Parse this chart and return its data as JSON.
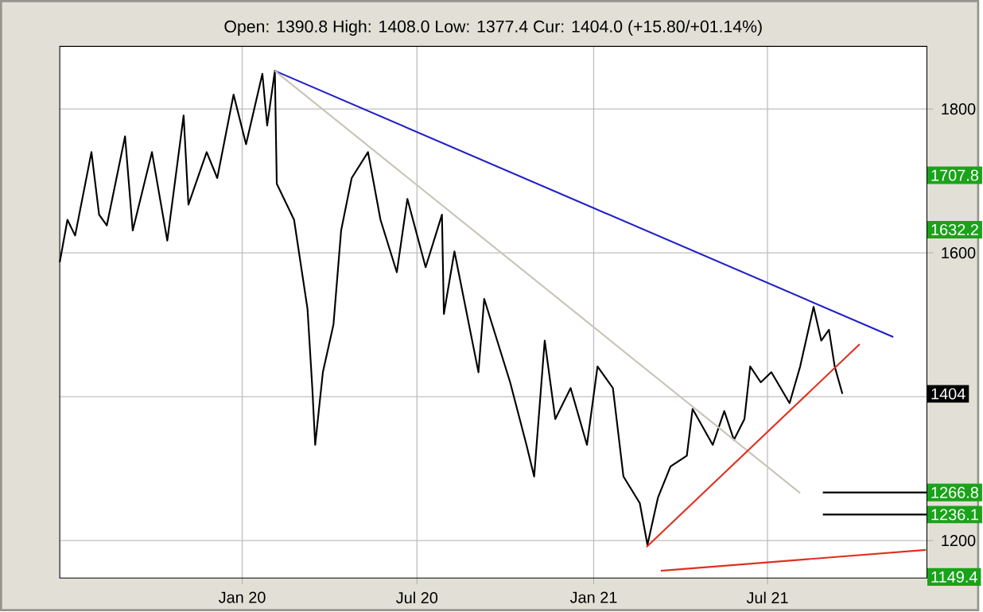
{
  "chart_data": {
    "type": "line",
    "title": "Open: 1390.8 High: 1408.0 Low: 1377.4 Cur: 1404.0 (+15.80/+01.14%)",
    "xlim": [
      "2019-06-25",
      "2021-12-14"
    ],
    "xticks": [
      {
        "value": "2020-01-01",
        "label": "Jan 20"
      },
      {
        "value": "2020-07-01",
        "label": "Jul 20"
      },
      {
        "value": "2021-01-01",
        "label": "Jan 21"
      },
      {
        "value": "2021-07-01",
        "label": "Jul 21"
      }
    ],
    "ylim": [
      1148,
      1887
    ],
    "yticks": [
      1200,
      {
        "value": 1400,
        "label": null
      },
      1600,
      1800
    ],
    "grid": true,
    "series": [
      {
        "color": "#000000",
        "x": [
          "2019-06-25",
          "2019-07-03",
          "2019-07-11",
          "2019-07-28",
          "2019-08-05",
          "2019-08-13",
          "2019-09-01",
          "2019-09-09",
          "2019-09-29",
          "2019-10-15",
          "2019-11-01",
          "2019-11-06",
          "2019-11-25",
          "2019-12-06",
          "2019-12-23",
          "2020-01-05",
          "2020-01-22",
          "2020-01-27",
          "2020-02-04",
          "2020-02-06",
          "2020-02-24",
          "2020-03-09",
          "2020-03-14",
          "2020-03-17",
          "2020-03-25",
          "2020-04-05",
          "2020-04-13",
          "2020-04-24",
          "2020-05-11",
          "2020-05-24",
          "2020-06-10",
          "2020-06-21",
          "2020-07-10",
          "2020-07-27",
          "2020-07-29",
          "2020-08-09",
          "2020-09-03",
          "2020-09-09",
          "2020-10-06",
          "2020-10-23",
          "2020-10-31",
          "2020-11-11",
          "2020-11-22",
          "2020-12-08",
          "2020-12-25",
          "2021-01-05",
          "2021-01-21",
          "2021-02-01",
          "2021-02-18",
          "2021-02-26",
          "2021-03-09",
          "2021-03-22",
          "2021-04-08",
          "2021-04-14",
          "2021-05-05",
          "2021-05-17",
          "2021-05-27",
          "2021-06-07",
          "2021-06-13",
          "2021-06-24",
          "2021-07-05",
          "2021-07-24",
          "2021-08-04",
          "2021-08-18",
          "2021-08-26",
          "2021-09-03",
          "2021-09-09",
          "2021-09-17"
        ],
        "values": [
          1587,
          1646,
          1624,
          1740,
          1653,
          1638,
          1762,
          1631,
          1740,
          1617,
          1791,
          1667,
          1740,
          1704,
          1820,
          1751,
          1849,
          1777,
          1853,
          1696,
          1646,
          1522,
          1412,
          1333,
          1434,
          1500,
          1631,
          1704,
          1740,
          1646,
          1573,
          1675,
          1580,
          1653,
          1515,
          1602,
          1434,
          1536,
          1420,
          1333,
          1289,
          1478,
          1369,
          1412,
          1333,
          1442,
          1412,
          1289,
          1252,
          1194,
          1260,
          1303,
          1318,
          1383,
          1333,
          1380,
          1340,
          1369,
          1442,
          1420,
          1434,
          1391,
          1442,
          1525,
          1478,
          1493,
          1442,
          1404
        ]
      },
      {
        "color": "#2020c8",
        "x": [
          "2020-02-04",
          "2021-11-09"
        ],
        "values": [
          1853,
          1483
        ]
      },
      {
        "color": "#c8c4b8",
        "x": [
          "2020-02-04",
          "2021-08-04"
        ],
        "values": [
          1853,
          1266
        ]
      },
      {
        "color": "#e03020",
        "x": [
          "2021-02-25",
          "2021-10-05"
        ],
        "values": [
          1191,
          1473
        ]
      },
      {
        "color": "#e03020",
        "x": [
          "2021-03-12",
          "2021-12-13"
        ],
        "values": [
          1158,
          1187
        ]
      }
    ],
    "ref_lines": [
      {
        "axis": "y",
        "value": 1266.8,
        "label": "1266.8",
        "color": "#000000"
      },
      {
        "axis": "y",
        "value": 1236.1,
        "label": "1236.1",
        "color": "#000000"
      }
    ],
    "annotations": [
      {
        "text": "1404",
        "y": 1404
      },
      {
        "text": "1707.8",
        "y": 1707.8
      },
      {
        "text": "1632.2",
        "y": 1632.2
      },
      {
        "text": "1149.4",
        "y": 1149.4
      }
    ]
  }
}
